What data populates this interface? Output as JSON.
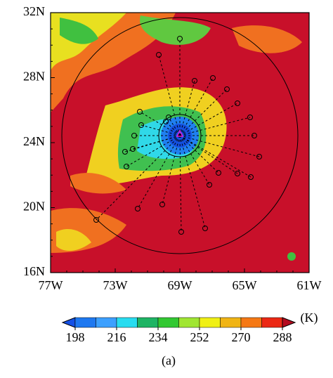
{
  "map": {
    "x_labels": [
      "77W",
      "73W",
      "69W",
      "65W",
      "61W"
    ],
    "y_labels": [
      "32N",
      "28N",
      "24N",
      "20N",
      "16N"
    ]
  },
  "colorbar": {
    "lim": [
      198,
      288
    ],
    "levels": [
      198,
      207,
      216,
      225,
      234,
      243,
      252,
      261,
      270,
      279,
      288
    ],
    "ticks": [
      198,
      216,
      234,
      252,
      270,
      288
    ],
    "colors": [
      "#1450e6",
      "#1e78f0",
      "#3ca0ff",
      "#28dcf0",
      "#1eb464",
      "#32c832",
      "#a0e632",
      "#f0f014",
      "#f0b414",
      "#f57814",
      "#eb2814",
      "#b40a1e"
    ],
    "unit": "(K)"
  },
  "caption": "(a)"
}
